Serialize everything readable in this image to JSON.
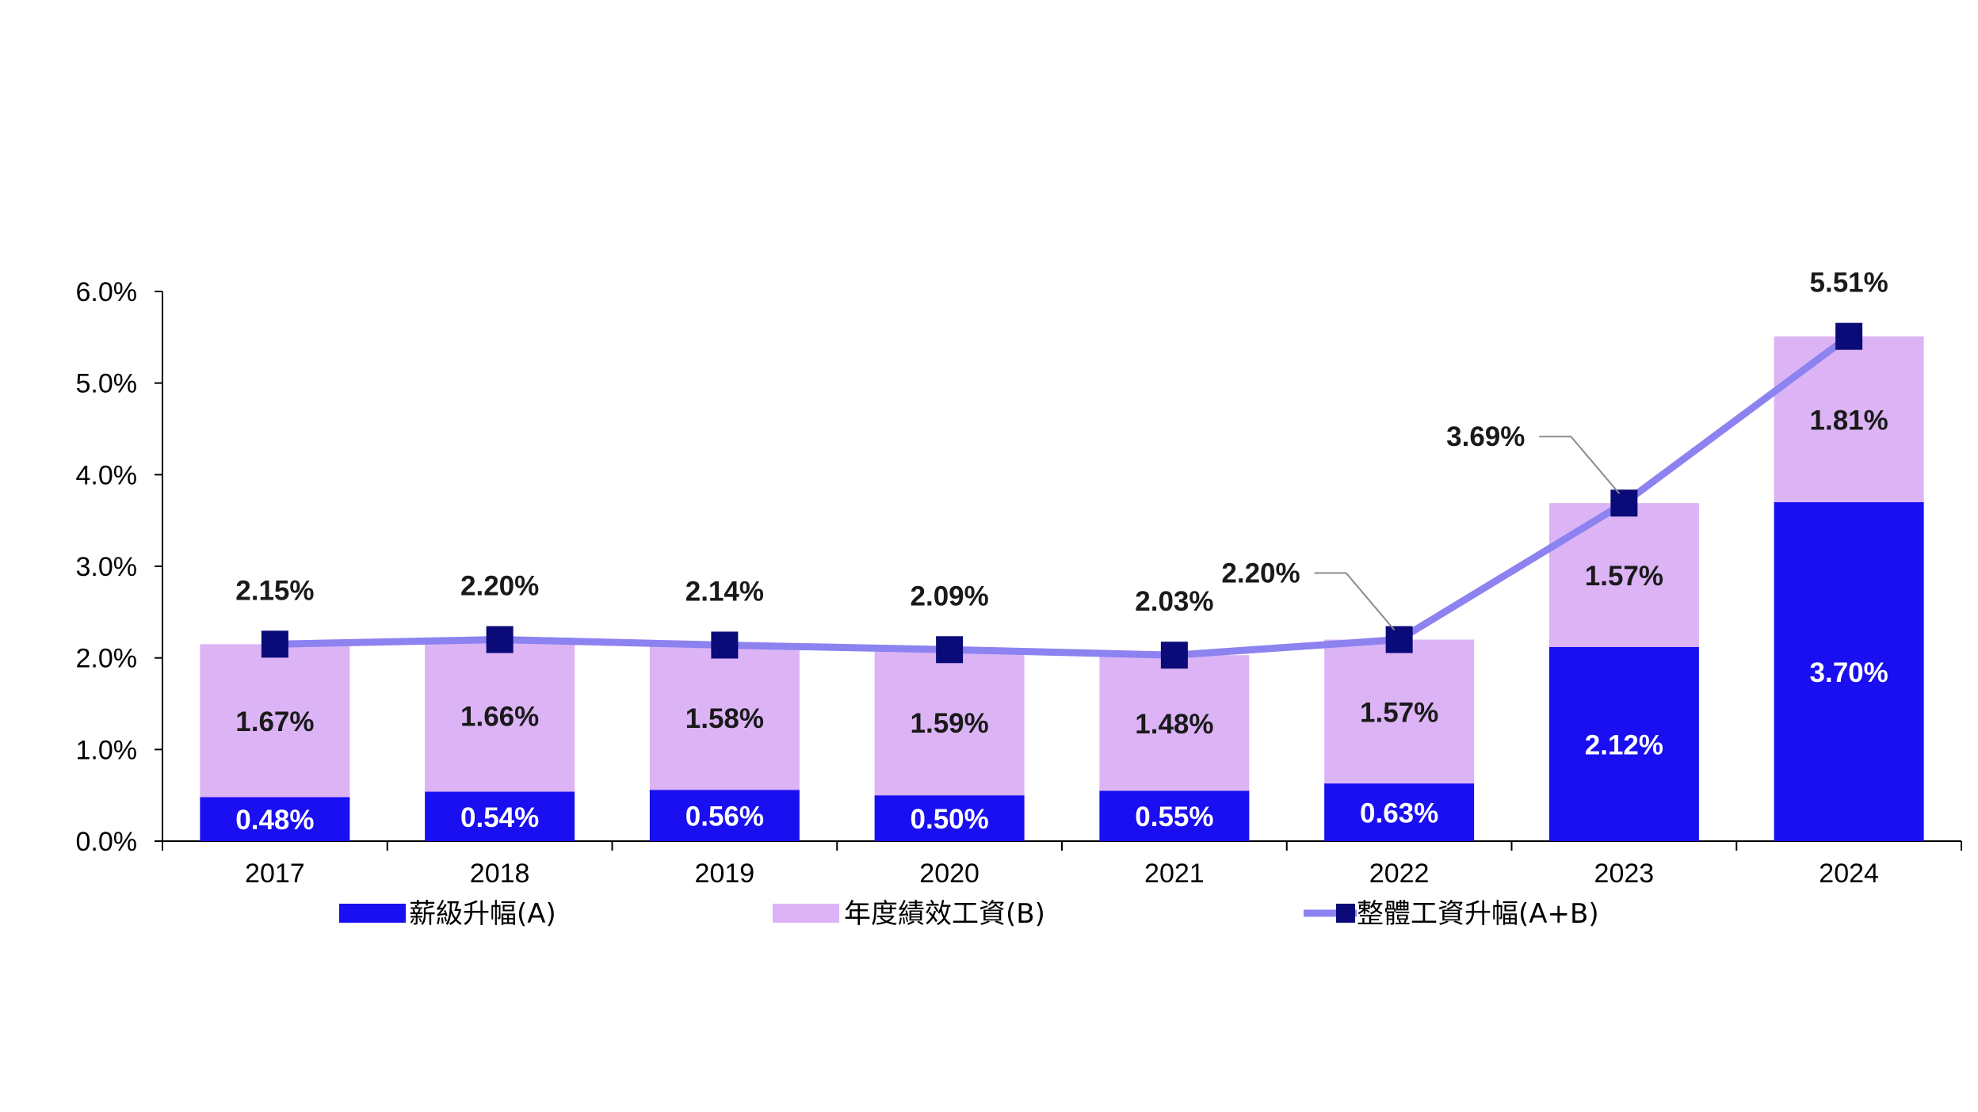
{
  "chart_data": {
    "type": "bar",
    "stacked": true,
    "categories": [
      "2017",
      "2018",
      "2019",
      "2020",
      "2021",
      "2022",
      "2023",
      "2024"
    ],
    "series": [
      {
        "name": "薪級升幅(A)",
        "values": [
          0.48,
          0.54,
          0.56,
          0.5,
          0.55,
          0.63,
          2.12,
          3.7
        ],
        "labels": [
          "0.48%",
          "0.54%",
          "0.56%",
          "0.50%",
          "0.55%",
          "0.63%",
          "2.12%",
          "3.70%"
        ],
        "color": "#1a0ff0"
      },
      {
        "name": "年度績效工資(B)",
        "values": [
          1.67,
          1.66,
          1.58,
          1.59,
          1.48,
          1.57,
          1.57,
          1.81
        ],
        "labels": [
          "1.67%",
          "1.66%",
          "1.58%",
          "1.59%",
          "1.48%",
          "1.57%",
          "1.57%",
          "1.81%"
        ],
        "color": "#dcb4f5"
      }
    ],
    "line_series": {
      "name": "整體工資升幅(A+B)",
      "values": [
        2.15,
        2.2,
        2.14,
        2.09,
        2.03,
        2.2,
        3.69,
        5.51
      ],
      "labels": [
        "2.15%",
        "2.20%",
        "2.14%",
        "2.09%",
        "2.03%",
        "2.20%",
        "3.69%",
        "5.51%"
      ],
      "line_color": "#8c82f0",
      "marker_color": "#0a0a78"
    },
    "y_ticks": [
      "0.0%",
      "1.0%",
      "2.0%",
      "3.0%",
      "4.0%",
      "5.0%",
      "6.0%"
    ],
    "ylim": [
      0,
      6
    ],
    "title": "",
    "xlabel": "",
    "ylabel": "",
    "legend": "bottom",
    "grid": false
  }
}
